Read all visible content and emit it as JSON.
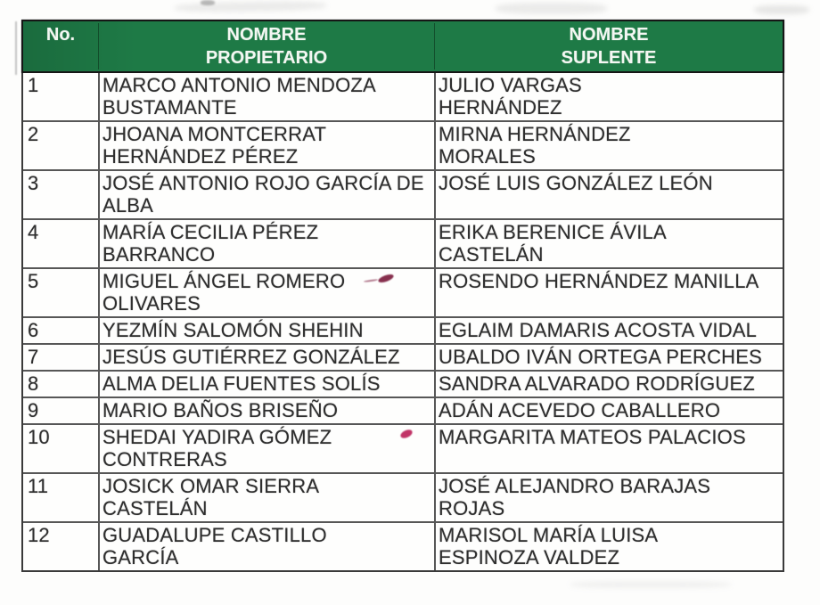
{
  "table": {
    "header_bg": "#1e7a46",
    "header": {
      "no": {
        "lines": [
          "No."
        ]
      },
      "propietario": {
        "lines": [
          "NOMBRE",
          "PROPIETARIO"
        ]
      },
      "suplente": {
        "lines": [
          "NOMBRE",
          "SUPLENTE"
        ]
      }
    },
    "rows": [
      {
        "no": "1",
        "propietario": [
          "MARCO ANTONIO MENDOZA",
          "BUSTAMANTE"
        ],
        "suplente": [
          "JULIO VARGAS",
          "HERNÁNDEZ"
        ]
      },
      {
        "no": "2",
        "propietario": [
          "JHOANA MONTCERRAT",
          "HERNÁNDEZ PÉREZ"
        ],
        "suplente": [
          "MIRNA HERNÁNDEZ",
          "MORALES"
        ]
      },
      {
        "no": "3",
        "propietario": [
          "JOSÉ ANTONIO ROJO GARCÍA DE",
          "ALBA"
        ],
        "suplente": [
          "JOSÉ LUIS GONZÁLEZ LEÓN"
        ]
      },
      {
        "no": "4",
        "propietario": [
          "MARÍA CECILIA PÉREZ",
          "BARRANCO"
        ],
        "suplente": [
          "ERIKA BERENICE ÁVILA",
          "CASTELÁN"
        ]
      },
      {
        "no": "5",
        "propietario": [
          "MIGUEL ÁNGEL ROMERO",
          "OLIVARES"
        ],
        "suplente": [
          "ROSENDO HERNÁNDEZ MANILLA"
        ]
      },
      {
        "no": "6",
        "propietario": [
          "YEZMÍN SALOMÓN SHEHIN"
        ],
        "suplente": [
          "EGLAIM DAMARIS ACOSTA VIDAL"
        ]
      },
      {
        "no": "7",
        "propietario": [
          "JESÚS GUTIÉRREZ GONZÁLEZ"
        ],
        "suplente": [
          "UBALDO IVÁN ORTEGA PERCHES"
        ]
      },
      {
        "no": "8",
        "propietario": [
          "ALMA DELIA FUENTES SOLÍS"
        ],
        "suplente": [
          "SANDRA ALVARADO RODRÍGUEZ"
        ]
      },
      {
        "no": "9",
        "propietario": [
          "MARIO BAÑOS BRISEÑO"
        ],
        "suplente": [
          "ADÁN ACEVEDO CABALLERO"
        ]
      },
      {
        "no": "10",
        "propietario": [
          "SHEDAI YADIRA GÓMEZ",
          "CONTRERAS"
        ],
        "suplente": [
          "MARGARITA MATEOS PALACIOS"
        ]
      },
      {
        "no": "11",
        "propietario": [
          "JOSICK OMAR SIERRA",
          "CASTELÁN"
        ],
        "suplente": [
          "JOSÉ ALEJANDRO BARAJAS",
          "ROJAS"
        ]
      },
      {
        "no": "12",
        "propietario": [
          "GUADALUPE CASTILLO",
          "GARCÍA"
        ],
        "suplente": [
          "MARISOL MARÍA LUISA",
          "ESPINOZA VALDEZ"
        ]
      }
    ]
  },
  "pen_marks": [
    {
      "name": "red-pen-squiggle",
      "color": "#87304e"
    },
    {
      "name": "red-pen-dot",
      "color": "#c13467"
    }
  ]
}
